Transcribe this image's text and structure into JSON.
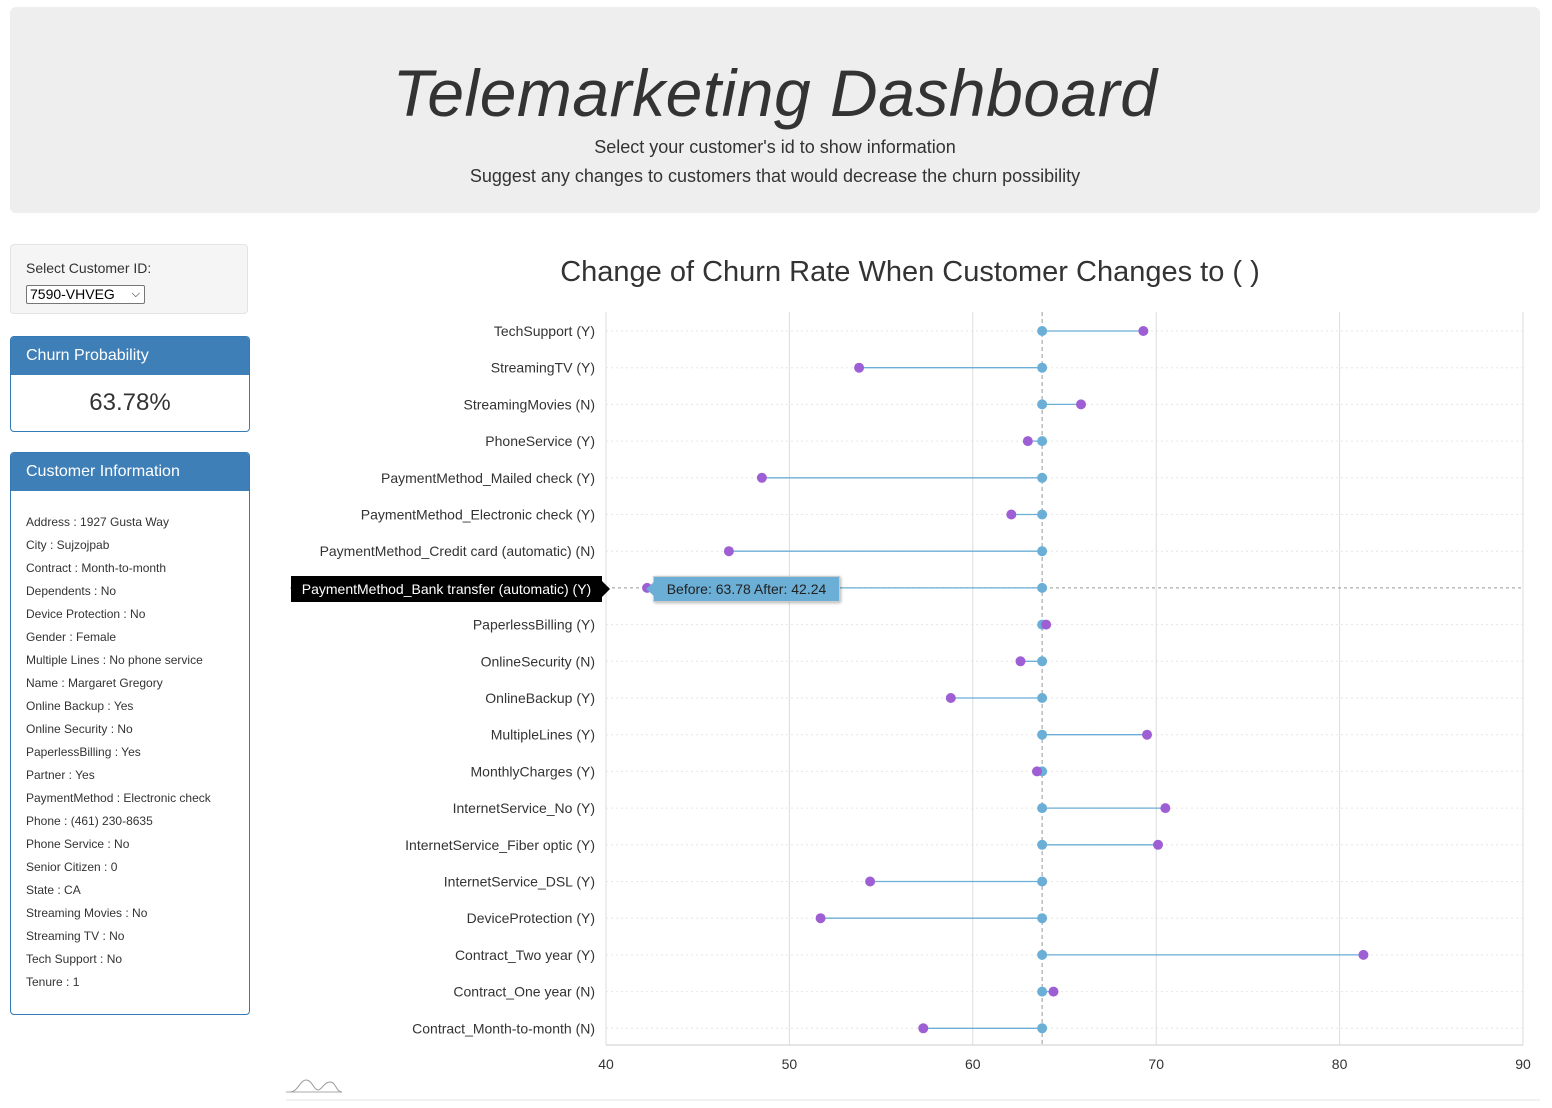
{
  "header": {
    "title": "Telemarketing Dashboard",
    "subtitle1": "Select your customer's id to show information",
    "subtitle2": "Suggest any changes to customers that would decrease the churn possibility"
  },
  "customer_select": {
    "label": "Select Customer ID:",
    "selected": "7590-VHVEG"
  },
  "churn_panel": {
    "title": "Churn Probability",
    "value": "63.78%"
  },
  "info_panel": {
    "title": "Customer Information",
    "items": [
      "Address : 1927 Gusta Way",
      "City : Sujzojpab",
      "Contract : Month-to-month",
      "Dependents : No",
      "Device Protection : No",
      "Gender : Female",
      "Multiple Lines : No phone service",
      "Name : Margaret Gregory",
      "Online Backup : Yes",
      "Online Security : No",
      "PaperlessBilling : Yes",
      "Partner : Yes",
      "PaymentMethod : Electronic check",
      "Phone : (461) 230-8635",
      "Phone Service : No",
      "Senior Citizen : 0",
      "State : CA",
      "Streaming Movies : No",
      "Streaming TV : No",
      "Tech Support : No",
      "Tenure : 1"
    ]
  },
  "tooltip": {
    "category": "PaymentMethod_Bank transfer (automatic) (Y)",
    "text": "Before: 63.78 After: 42.24"
  },
  "colors": {
    "before": "#6baed6",
    "after": "#9e5fd4",
    "panel_header": "#3f7fb8"
  },
  "chart_data": {
    "type": "dumbbell",
    "title": "Change of Churn Rate When Customer Changes to ( )",
    "xlim": [
      40,
      90
    ],
    "xticks": [
      40,
      50,
      60,
      70,
      80,
      90
    ],
    "before": 63.78,
    "highlighted": "PaymentMethod_Bank transfer (automatic) (Y)",
    "categories": [
      "TechSupport (Y)",
      "StreamingTV (Y)",
      "StreamingMovies (N)",
      "PhoneService (Y)",
      "PaymentMethod_Mailed check (Y)",
      "PaymentMethod_Electronic check (Y)",
      "PaymentMethod_Credit card (automatic) (N)",
      "PaymentMethod_Bank transfer (automatic) (Y)",
      "PaperlessBilling (Y)",
      "OnlineSecurity (N)",
      "OnlineBackup (Y)",
      "MultipleLines (Y)",
      "MonthlyCharges (Y)",
      "InternetService_No (Y)",
      "InternetService_Fiber optic (Y)",
      "InternetService_DSL (Y)",
      "DeviceProtection (Y)",
      "Contract_Two year (Y)",
      "Contract_One year (N)",
      "Contract_Month-to-month (N)"
    ],
    "after": [
      69.3,
      53.8,
      65.9,
      63.0,
      48.5,
      62.1,
      46.7,
      42.24,
      64.0,
      62.6,
      58.8,
      69.5,
      63.5,
      70.5,
      70.1,
      54.4,
      51.7,
      81.3,
      64.4,
      57.3
    ]
  }
}
